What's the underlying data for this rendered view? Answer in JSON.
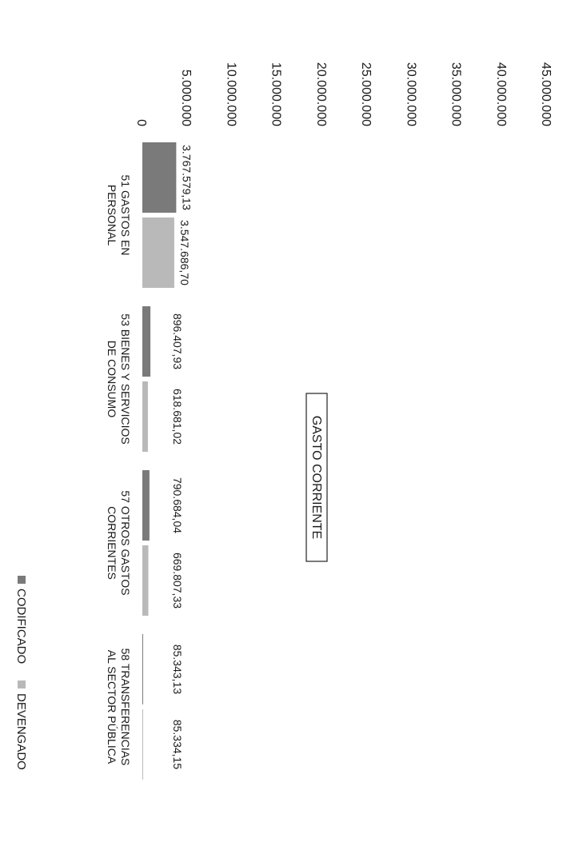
{
  "chart_data": {
    "type": "bar",
    "title": "GASTO CORRIENTE",
    "categories": [
      [
        "51 GASTOS EN",
        "PERSONAL"
      ],
      [
        "53 BIENES Y SERVICIOS",
        "DE CONSUMO"
      ],
      [
        "57 OTROS GASTOS",
        "CORRIENTES"
      ],
      [
        "58 TRANSFERENCIAS",
        "AL SECTOR PÚBLICA"
      ]
    ],
    "series": [
      {
        "name": "CODIFICADO",
        "color": "#7a7a7a",
        "values": [
          3767579.13,
          896407.93,
          790684.04,
          85343.13
        ],
        "labels": [
          "3.767.579,13",
          "896.407,93",
          "790.684,04",
          "85.343,13"
        ]
      },
      {
        "name": "DEVENGADO",
        "color": "#b9b9b9",
        "values": [
          3547686.7,
          618681.02,
          669807.33,
          85334.15
        ],
        "labels": [
          "3.547.686,70",
          "618.681,02",
          "669.807,33",
          "85.334,15"
        ]
      }
    ],
    "yticks": [
      "0",
      "5.000.000",
      "10.000.000",
      "15.000.000",
      "20.000.000",
      "25.000.000",
      "30.000.000",
      "35.000.000",
      "40.000.000",
      "45.000.000"
    ],
    "ylim": [
      0,
      45000000
    ],
    "grid": false,
    "legend": "bottom",
    "orientation": "rotated"
  }
}
